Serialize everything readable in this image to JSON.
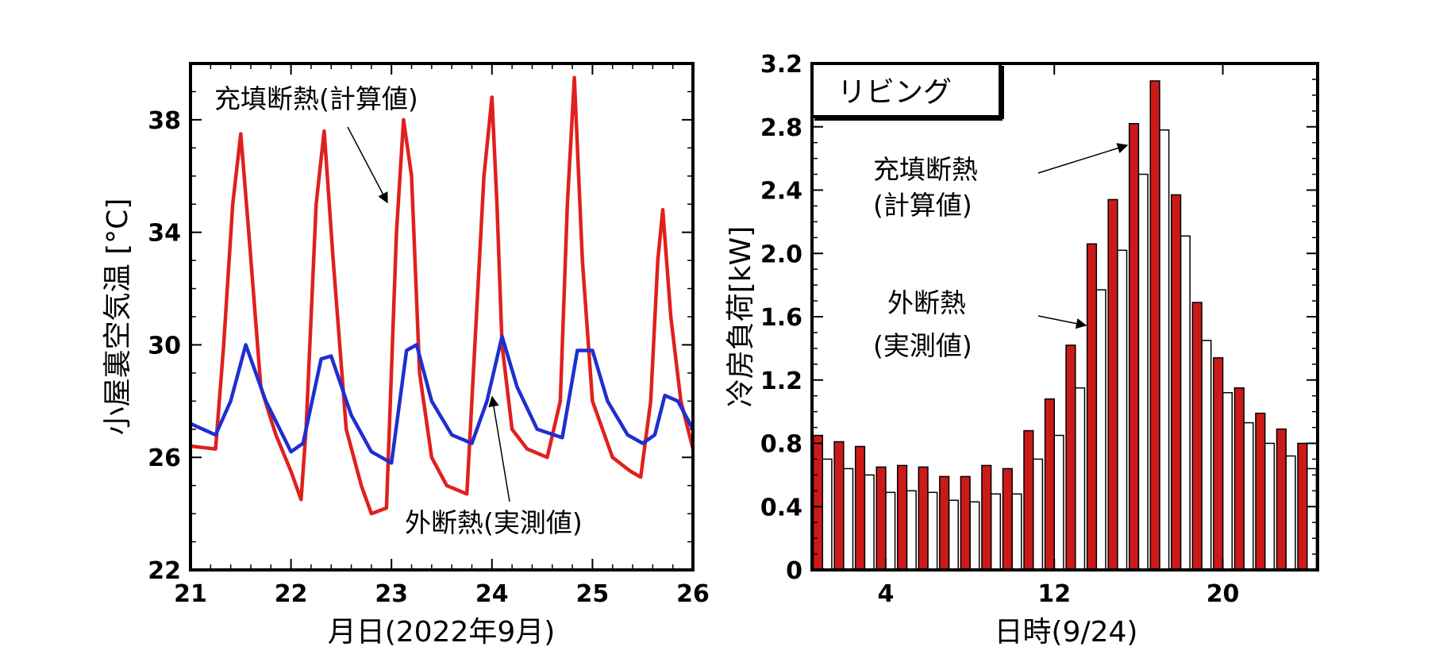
{
  "chart_data": [
    {
      "type": "line",
      "xlabel": "月日(2022年9月)",
      "ylabel": "小屋裏空気温 [°C]",
      "xlim": [
        21,
        26
      ],
      "ylim": [
        22,
        40
      ],
      "xticks": [
        "21",
        "22",
        "23",
        "24",
        "25",
        "26"
      ],
      "yticks": [
        "22",
        "26",
        "30",
        "34",
        "38"
      ],
      "annotations": [
        "充填断熱(計算値)",
        "外断熱(実測値)"
      ],
      "series": [
        {
          "name": "充填断熱(計算値)",
          "color": "#e0201e",
          "x": [
            21.0,
            21.25,
            21.33,
            21.42,
            21.5,
            21.58,
            21.7,
            21.85,
            22.0,
            22.1,
            22.15,
            22.25,
            22.33,
            22.42,
            22.55,
            22.7,
            22.8,
            22.95,
            23.05,
            23.12,
            23.2,
            23.28,
            23.4,
            23.55,
            23.75,
            23.92,
            24.0,
            24.05,
            24.1,
            24.2,
            24.35,
            24.55,
            24.68,
            24.75,
            24.82,
            24.9,
            25.0,
            25.2,
            25.38,
            25.48,
            25.58,
            25.65,
            25.7,
            25.78,
            25.88,
            26.0
          ],
          "y": [
            26.4,
            26.3,
            30.0,
            35.0,
            37.5,
            34.0,
            28.5,
            26.8,
            25.5,
            24.5,
            27.0,
            35.0,
            37.6,
            33.0,
            27.0,
            25.0,
            24.0,
            24.2,
            34.0,
            38.0,
            36.0,
            29.0,
            26.0,
            25.0,
            24.7,
            36.0,
            38.8,
            35.0,
            30.0,
            27.0,
            26.3,
            26.0,
            28.0,
            35.0,
            39.5,
            33.0,
            28.0,
            26.0,
            25.5,
            25.3,
            28.0,
            33.0,
            34.8,
            31.0,
            28.0,
            26.3
          ]
        },
        {
          "name": "外断熱(実測値)",
          "color": "#1f2fd0",
          "x": [
            21.0,
            21.25,
            21.4,
            21.55,
            21.75,
            22.0,
            22.12,
            22.3,
            22.4,
            22.6,
            22.8,
            23.0,
            23.15,
            23.25,
            23.4,
            23.6,
            23.8,
            23.95,
            24.1,
            24.25,
            24.45,
            24.7,
            24.85,
            25.0,
            25.15,
            25.35,
            25.5,
            25.62,
            25.72,
            25.85,
            26.0
          ],
          "y": [
            27.2,
            26.8,
            28.0,
            30.0,
            28.0,
            26.2,
            26.5,
            29.5,
            29.6,
            27.5,
            26.2,
            25.8,
            29.8,
            30.0,
            28.0,
            26.8,
            26.5,
            28.0,
            30.3,
            28.5,
            27.0,
            26.7,
            29.8,
            29.8,
            28.0,
            26.8,
            26.5,
            26.8,
            28.2,
            28.0,
            27.0
          ]
        }
      ]
    },
    {
      "type": "bar",
      "title": "リビング",
      "xlabel": "日時(9/24)",
      "ylabel": "冷房負荷[kW]",
      "xlim": [
        0.5,
        24.5
      ],
      "ylim": [
        0,
        3.2
      ],
      "xticks": [
        "4",
        "12",
        "20"
      ],
      "yticks": [
        "0",
        "0.4",
        "0.8",
        "1.2",
        "1.6",
        "2.0",
        "2.4",
        "2.8",
        "3.2"
      ],
      "annotations": [
        "充填断熱\n(計算値)",
        "外断熱\n(実測値)"
      ],
      "categories": [
        "1",
        "2",
        "3",
        "4",
        "5",
        "6",
        "7",
        "8",
        "9",
        "10",
        "11",
        "12",
        "13",
        "14",
        "15",
        "16",
        "17",
        "18",
        "19",
        "20",
        "21",
        "22",
        "23",
        "24"
      ],
      "series": [
        {
          "name": "充填断熱(計算値)",
          "color": "#cc1a1a",
          "values": [
            0.85,
            0.81,
            0.78,
            0.65,
            0.66,
            0.65,
            0.59,
            0.59,
            0.66,
            0.64,
            0.88,
            1.08,
            1.42,
            2.06,
            2.34,
            2.82,
            3.09,
            2.37,
            1.69,
            1.34,
            1.15,
            0.99,
            0.89,
            0.8
          ]
        },
        {
          "name": "外断熱(実測値)",
          "color": "#ffffff",
          "values": [
            0.7,
            0.64,
            0.6,
            0.49,
            0.5,
            0.49,
            0.44,
            0.43,
            0.48,
            0.48,
            0.7,
            0.85,
            1.15,
            1.77,
            2.02,
            2.5,
            2.78,
            2.11,
            1.45,
            1.12,
            0.93,
            0.8,
            0.72,
            0.64
          ]
        }
      ]
    }
  ]
}
